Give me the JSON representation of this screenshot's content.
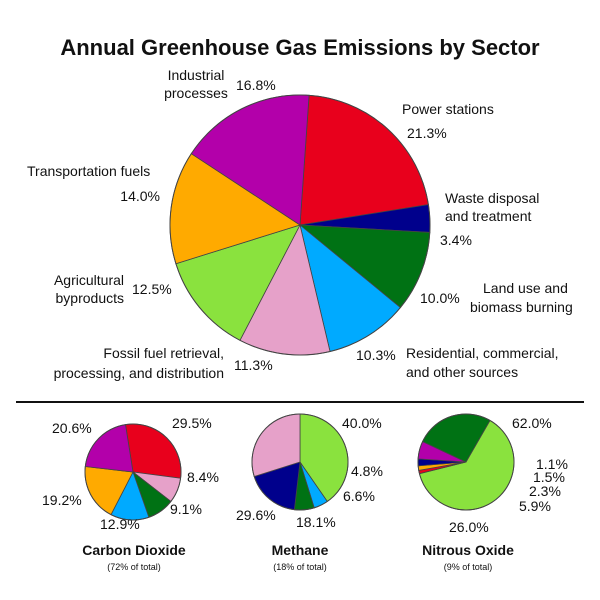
{
  "chart_data": [
    {
      "type": "pie",
      "title": "Annual Greenhouse Gas Emissions by Sector",
      "unit": "%",
      "slices": [
        {
          "label": "Power stations",
          "value": 21.3,
          "color": "#e8001c"
        },
        {
          "label": "Waste disposal and treatment",
          "value": 3.4,
          "color": "#00008c"
        },
        {
          "label": "Land use and biomass burning",
          "value": 10.0,
          "color": "#007214"
        },
        {
          "label": "Residential, commercial, and other sources",
          "value": 10.3,
          "color": "#00aaff"
        },
        {
          "label": "Fossil fuel retrieval, processing, and distribution",
          "value": 11.3,
          "color": "#e6a1c9"
        },
        {
          "label": "Agricultural byproducts",
          "value": 12.5,
          "color": "#8ae23e"
        },
        {
          "label": "Transportation fuels",
          "value": 14.0,
          "color": "#ffaa00"
        },
        {
          "label": "Industrial processes",
          "value": 16.8,
          "color": "#b300aa"
        }
      ]
    },
    {
      "type": "pie",
      "title": "Carbon Dioxide",
      "subtitle": "(72% of total)",
      "slices": [
        {
          "label": "Power stations",
          "value": 29.5,
          "color": "#e8001c"
        },
        {
          "label": "Fossil fuel retrieval, processing, and distribution",
          "value": 8.4,
          "color": "#e6a1c9"
        },
        {
          "label": "Land use and biomass burning",
          "value": 9.1,
          "color": "#007214"
        },
        {
          "label": "Residential, commercial, and other sources",
          "value": 12.9,
          "color": "#00aaff"
        },
        {
          "label": "Transportation fuels",
          "value": 19.2,
          "color": "#ffaa00"
        },
        {
          "label": "Industrial processes",
          "value": 20.6,
          "color": "#b300aa"
        }
      ]
    },
    {
      "type": "pie",
      "title": "Methane",
      "subtitle": "(18% of total)",
      "slices": [
        {
          "label": "Agricultural byproducts",
          "value": 40.0,
          "color": "#8ae23e"
        },
        {
          "label": "Residential, commercial, and other sources",
          "value": 4.8,
          "color": "#00aaff"
        },
        {
          "label": "Land use and biomass burning",
          "value": 6.6,
          "color": "#007214"
        },
        {
          "label": "Waste disposal and treatment",
          "value": 18.1,
          "color": "#00008c"
        },
        {
          "label": "Fossil fuel retrieval, processing, and distribution",
          "value": 29.6,
          "color": "#e6a1c9"
        }
      ]
    },
    {
      "type": "pie",
      "title": "Nitrous Oxide",
      "subtitle": "(9% of total)",
      "slices": [
        {
          "label": "Agricultural byproducts",
          "value": 62.0,
          "color": "#8ae23e"
        },
        {
          "label": "Power stations",
          "value": 1.1,
          "color": "#e8001c"
        },
        {
          "label": "Transportation fuels",
          "value": 1.5,
          "color": "#ffaa00"
        },
        {
          "label": "Waste disposal and treatment",
          "value": 2.3,
          "color": "#00008c"
        },
        {
          "label": "Industrial processes",
          "value": 5.9,
          "color": "#b300aa"
        },
        {
          "label": "Land use and biomass burning",
          "value": 26.0,
          "color": "#007214"
        }
      ]
    }
  ],
  "main_labels": {
    "industrial": [
      "Industrial",
      "processes"
    ],
    "power": [
      "Power stations"
    ],
    "transport": [
      "Transportation fuels"
    ],
    "waste": [
      "Waste disposal",
      "and treatment"
    ],
    "agri": [
      "Agricultural",
      "byproducts"
    ],
    "landuse": [
      "Land use and",
      "biomass burning"
    ],
    "fossil": [
      "Fossil fuel retrieval,",
      "processing, and distribution"
    ],
    "residential": [
      "Residential, commercial,",
      "and other sources"
    ]
  },
  "main_pcts": {
    "industrial": "16.8%",
    "power": "21.3%",
    "transport": "14.0%",
    "waste": "3.4%",
    "agri": "12.5%",
    "landuse": "10.0%",
    "fossil": "11.3%",
    "residential": "10.3%"
  },
  "small_pcts": {
    "co2": [
      "20.6%",
      "29.5%",
      "8.4%",
      "9.1%",
      "12.9%",
      "19.2%"
    ],
    "ch4": [
      "40.0%",
      "4.8%",
      "6.6%",
      "18.1%",
      "29.6%"
    ],
    "n2o": [
      "62.0%",
      "1.1%",
      "1.5%",
      "2.3%",
      "5.9%",
      "26.0%"
    ]
  }
}
